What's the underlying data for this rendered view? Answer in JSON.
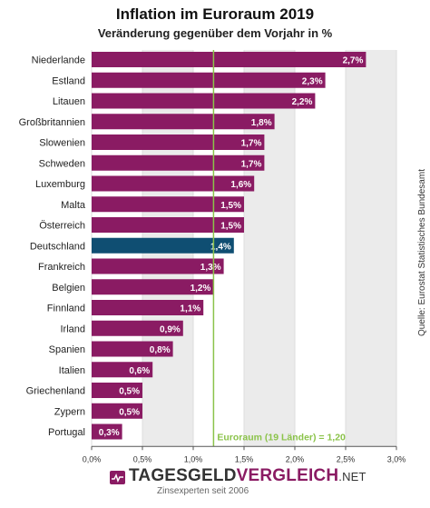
{
  "chart_data": {
    "type": "bar",
    "orientation": "horizontal",
    "title": "Inflation im Euroraum 2019",
    "subtitle": "Veränderung gegenüber dem Vorjahr in %",
    "categories": [
      "Niederlande",
      "Estland",
      "Litauen",
      "Großbritannien",
      "Slowenien",
      "Schweden",
      "Luxemburg",
      "Malta",
      "Österreich",
      "Deutschland",
      "Frankreich",
      "Belgien",
      "Finnland",
      "Irland",
      "Spanien",
      "Italien",
      "Griechenland",
      "Zypern",
      "Portugal"
    ],
    "values": [
      2.7,
      2.3,
      2.2,
      1.8,
      1.7,
      1.7,
      1.6,
      1.5,
      1.5,
      1.4,
      1.3,
      1.2,
      1.1,
      0.9,
      0.8,
      0.6,
      0.5,
      0.5,
      0.3
    ],
    "value_labels": [
      "2,7%",
      "2,3%",
      "2,2%",
      "1,8%",
      "1,7%",
      "1,7%",
      "1,6%",
      "1,5%",
      "1,5%",
      "1,4%",
      "1,3%",
      "1,2%",
      "1,1%",
      "0,9%",
      "0,8%",
      "0,6%",
      "0,5%",
      "0,5%",
      "0,3%"
    ],
    "highlight_category": "Deutschland",
    "xlim": [
      0,
      3.0
    ],
    "x_ticks": [
      0,
      0.5,
      1.0,
      1.5,
      2.0,
      2.5,
      3.0
    ],
    "x_tick_labels": [
      "0,0%",
      "0,5%",
      "1,0%",
      "1,5%",
      "2,0%",
      "2,5%",
      "3,0%"
    ],
    "reference_line": {
      "value": 1.2,
      "label": "Euroraum (19 Länder) = 1,20"
    },
    "grid": "alternating vertical bands",
    "colors": {
      "bar": "#8a1b63",
      "highlight": "#0f4e72",
      "reference": "#8bc34a",
      "band": "#ebebeb"
    }
  },
  "source": "Quelle: Eurostat Statistisches Bundesamt",
  "logo": {
    "part1": "TAGESGELD",
    "part2": "VERGLEICH",
    "tld": ".NET",
    "tagline": "Zinsexperten seit 2006"
  }
}
